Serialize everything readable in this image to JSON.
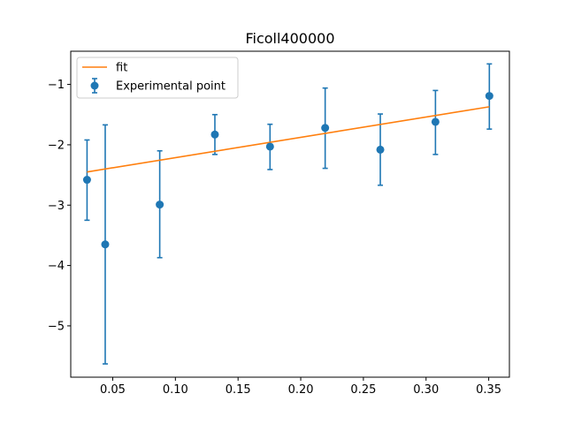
{
  "chart_data": {
    "type": "scatter",
    "title": "Ficoll400000",
    "xlabel": "",
    "ylabel": "",
    "xlim": [
      0.0165,
      0.3665
    ],
    "ylim": [
      -5.85,
      -0.45
    ],
    "xticks": [
      0.05,
      0.1,
      0.15,
      0.2,
      0.25,
      0.3,
      0.35
    ],
    "xtick_labels": [
      "0.05",
      "0.10",
      "0.15",
      "0.20",
      "0.25",
      "0.30",
      "0.35"
    ],
    "yticks": [
      -5,
      -4,
      -3,
      -2,
      -1
    ],
    "ytick_labels": [
      "−5",
      "−4",
      "−3",
      "−2",
      "−1"
    ],
    "grid": false,
    "legend_position": "upper-left",
    "series": [
      {
        "name": "Experimental point",
        "kind": "errorbar",
        "color": "#1f77b4",
        "x": [
          0.0295,
          0.044,
          0.0875,
          0.1315,
          0.1755,
          0.2195,
          0.2635,
          0.3075,
          0.3505
        ],
        "y": [
          -2.58,
          -3.65,
          -2.99,
          -1.83,
          -2.03,
          -1.72,
          -2.08,
          -1.62,
          -1.19
        ],
        "yerr_low": [
          0.67,
          1.98,
          0.88,
          0.33,
          0.38,
          0.67,
          0.59,
          0.54,
          0.55
        ],
        "yerr_high": [
          0.66,
          1.98,
          0.89,
          0.33,
          0.37,
          0.66,
          0.59,
          0.52,
          0.53
        ]
      },
      {
        "name": "fit",
        "kind": "line",
        "color": "#ff7f0e",
        "x": [
          0.0295,
          0.3505
        ],
        "y": [
          -2.45,
          -1.37
        ]
      }
    ]
  }
}
